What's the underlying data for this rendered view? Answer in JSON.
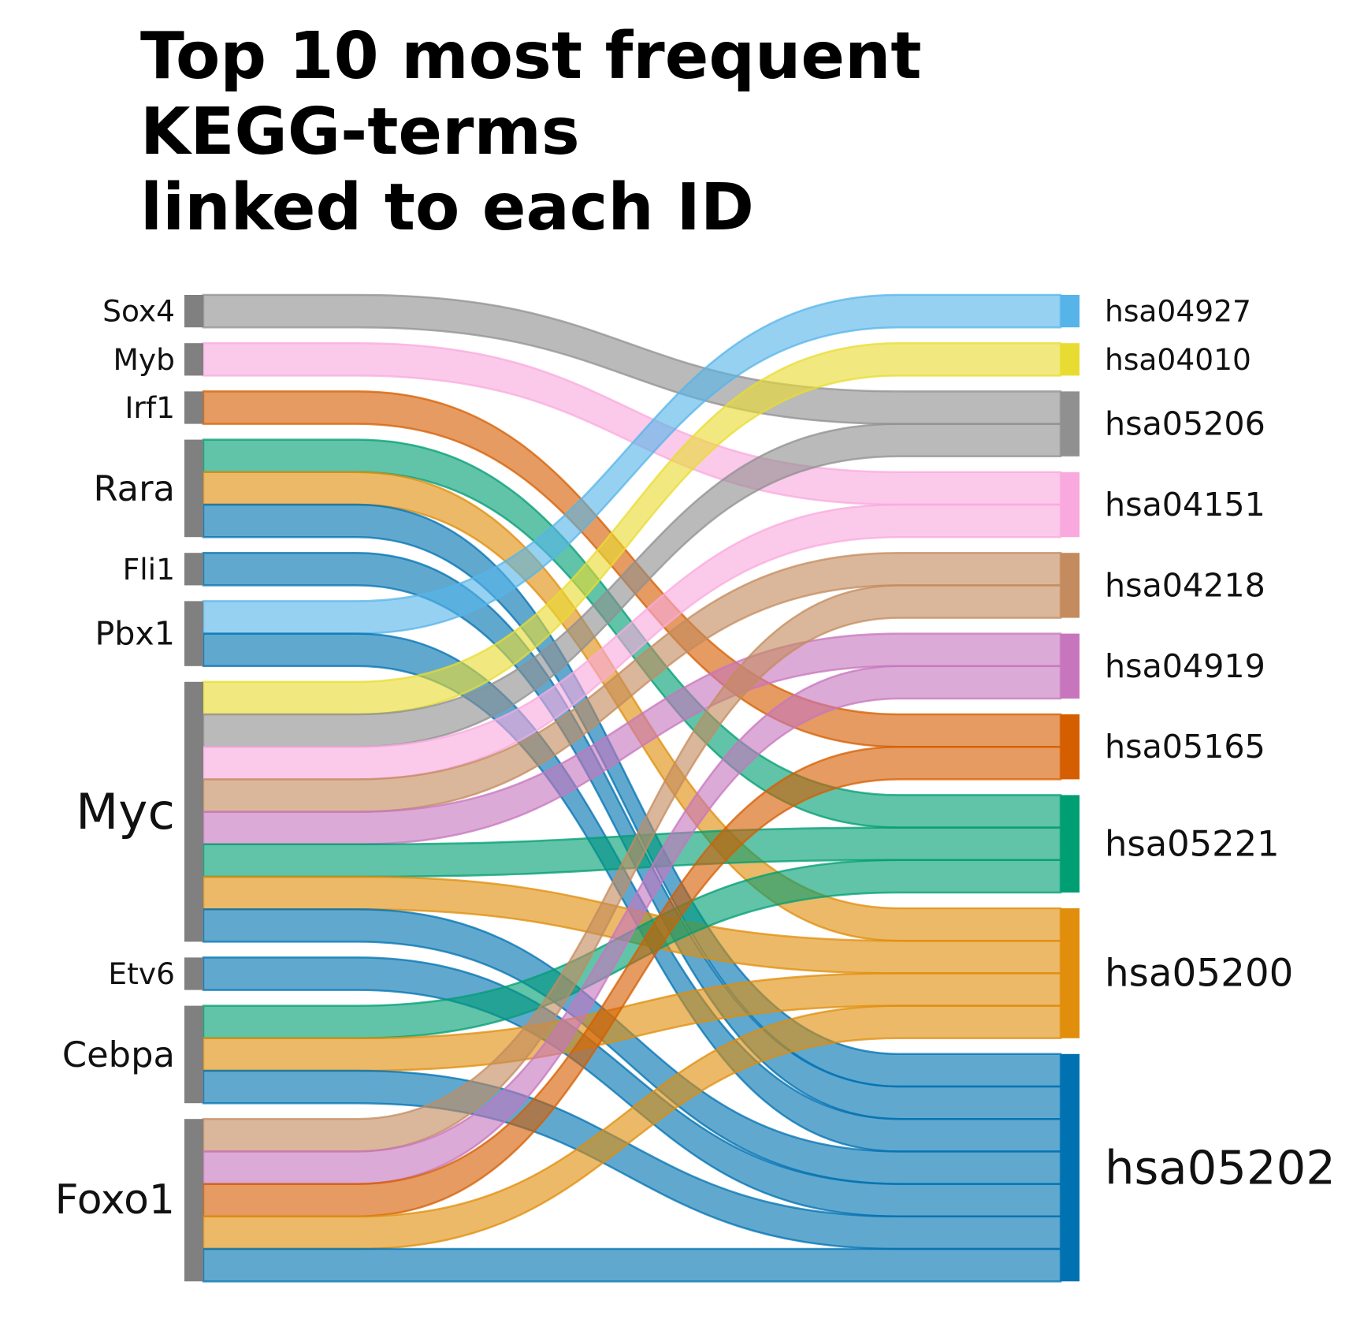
{
  "chart_data": {
    "type": "sankey",
    "title": [
      "Top 10 most frequent",
      "KEGG-terms",
      "linked to each ID"
    ],
    "left_nodes": [
      "Sox4",
      "Myb",
      "Irf1",
      "Rara",
      "Fli1",
      "Pbx1",
      "Myc",
      "Etv6",
      "Cebpa",
      "Foxo1"
    ],
    "right_nodes": [
      "hsa04927",
      "hsa04010",
      "hsa05206",
      "hsa04151",
      "hsa04218",
      "hsa04919",
      "hsa05165",
      "hsa05221",
      "hsa05200",
      "hsa05202"
    ],
    "right_colors": {
      "hsa04927": "#56B4E9",
      "hsa04010": "#E8DC32",
      "hsa05206": "#909090",
      "hsa04151": "#F9A9DD",
      "hsa04218": "#C48B5E",
      "hsa04919": "#C776BD",
      "hsa05165": "#D55E00",
      "hsa05221": "#009E73",
      "hsa05200": "#E08E0B",
      "hsa05202": "#0072B2"
    },
    "left_node_color": "#808080",
    "links": [
      {
        "source": "Sox4",
        "target": "hsa05206"
      },
      {
        "source": "Myb",
        "target": "hsa04151"
      },
      {
        "source": "Irf1",
        "target": "hsa05165"
      },
      {
        "source": "Rara",
        "target": "hsa05221"
      },
      {
        "source": "Rara",
        "target": "hsa05200"
      },
      {
        "source": "Rara",
        "target": "hsa05202"
      },
      {
        "source": "Fli1",
        "target": "hsa05202"
      },
      {
        "source": "Pbx1",
        "target": "hsa04927"
      },
      {
        "source": "Pbx1",
        "target": "hsa05202"
      },
      {
        "source": "Myc",
        "target": "hsa04010"
      },
      {
        "source": "Myc",
        "target": "hsa05206"
      },
      {
        "source": "Myc",
        "target": "hsa04151"
      },
      {
        "source": "Myc",
        "target": "hsa04218"
      },
      {
        "source": "Myc",
        "target": "hsa04919"
      },
      {
        "source": "Myc",
        "target": "hsa05221"
      },
      {
        "source": "Myc",
        "target": "hsa05200"
      },
      {
        "source": "Myc",
        "target": "hsa05202"
      },
      {
        "source": "Etv6",
        "target": "hsa05202"
      },
      {
        "source": "Cebpa",
        "target": "hsa05221"
      },
      {
        "source": "Cebpa",
        "target": "hsa05200"
      },
      {
        "source": "Cebpa",
        "target": "hsa05202"
      },
      {
        "source": "Foxo1",
        "target": "hsa04218"
      },
      {
        "source": "Foxo1",
        "target": "hsa04919"
      },
      {
        "source": "Foxo1",
        "target": "hsa05165"
      },
      {
        "source": "Foxo1",
        "target": "hsa05200"
      },
      {
        "source": "Foxo1",
        "target": "hsa05202"
      }
    ]
  }
}
